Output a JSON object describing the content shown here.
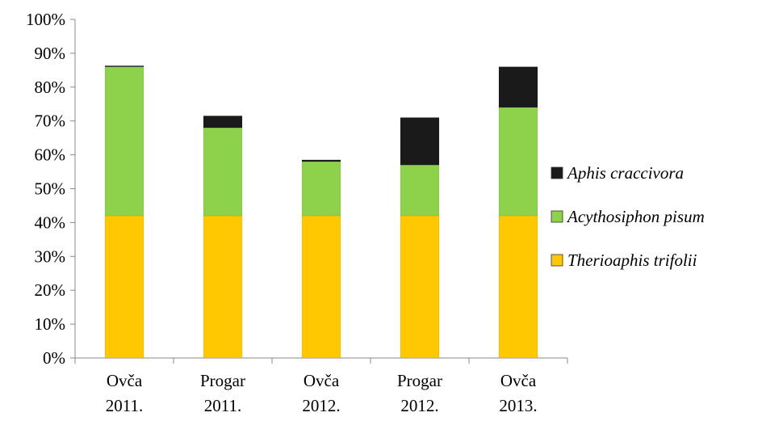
{
  "chart_data": {
    "type": "bar",
    "stacked": true,
    "percent": true,
    "categories": [
      [
        "Ovča",
        "2011."
      ],
      [
        "Progar",
        "2011."
      ],
      [
        "Ovča",
        "2012."
      ],
      [
        "Progar",
        "2012."
      ],
      [
        "Ovča",
        "2013."
      ]
    ],
    "y_ticks": [
      "0%",
      "10%",
      "20%",
      "30%",
      "40%",
      "50%",
      "60%",
      "70%",
      "80%",
      "90%",
      "100%"
    ],
    "ylim": [
      0,
      100
    ],
    "series": [
      {
        "name": "Therioaphis trifolii",
        "color": "#FFC800",
        "values": [
          42,
          42,
          42,
          42,
          42
        ]
      },
      {
        "name": "Acythosiphon pisum",
        "color": "#8DD24A",
        "values": [
          44,
          26,
          16,
          15,
          32
        ]
      },
      {
        "name": "Aphis craccivora",
        "color": "#1A1A1A",
        "values": [
          0.3,
          3.5,
          0.5,
          14,
          12
        ]
      }
    ],
    "legend": {
      "position": "right",
      "order": [
        "Aphis craccivora",
        "Acythosiphon pisum",
        "Therioaphis trifolii"
      ]
    },
    "grid": false,
    "title": "",
    "xlabel": "",
    "ylabel": ""
  }
}
